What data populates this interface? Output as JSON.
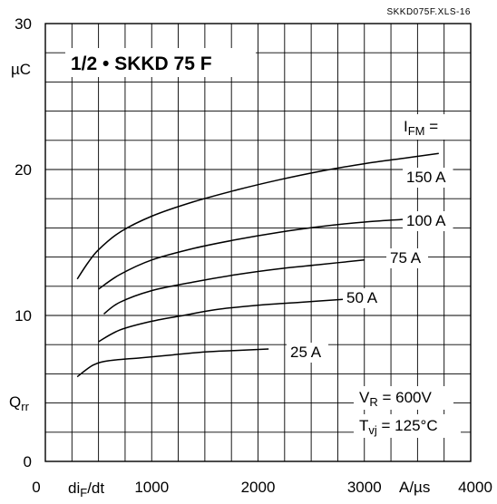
{
  "chart_data": {
    "type": "line",
    "title": "1/2 • SKKD 75 F",
    "reference": "SKKD075F.XLS-16",
    "x_axis": {
      "range": [
        0,
        4000
      ],
      "ticks": [
        0,
        1000,
        2000,
        3000,
        4000
      ],
      "tick_labels": [
        "0",
        "1000",
        "2000",
        "3000",
        "4000"
      ],
      "label": "di",
      "label_sub": "F",
      "label_suffix": "/dt",
      "unit": "A/µs"
    },
    "y_axis": {
      "range": [
        0,
        30
      ],
      "ticks": [
        0,
        10,
        20,
        30
      ],
      "tick_labels": [
        "0",
        "10",
        "20",
        "30"
      ],
      "label": "Q",
      "label_sub": "rr",
      "unit": "µC"
    },
    "grid": true,
    "legend_header": {
      "text": "I",
      "sub": "FM",
      "suffix": " ="
    },
    "series": [
      {
        "name": "150 A",
        "x": [
          300,
          400,
          500,
          700,
          1000,
          1400,
          1800,
          2200,
          2600,
          3000,
          3400,
          3700
        ],
        "y": [
          12.5,
          13.6,
          14.5,
          15.7,
          16.8,
          17.8,
          18.6,
          19.3,
          19.9,
          20.4,
          20.8,
          21.1
        ]
      },
      {
        "name": "100 A",
        "x": [
          500,
          700,
          1000,
          1400,
          1800,
          2200,
          2600,
          3000,
          3400,
          3500
        ],
        "y": [
          11.8,
          12.8,
          13.8,
          14.6,
          15.2,
          15.7,
          16.1,
          16.4,
          16.6,
          16.7
        ]
      },
      {
        "name": "75 A",
        "x": [
          550,
          700,
          1000,
          1400,
          1800,
          2200,
          2600,
          3000
        ],
        "y": [
          10.1,
          10.9,
          11.7,
          12.3,
          12.8,
          13.2,
          13.5,
          13.8
        ]
      },
      {
        "name": "50 A",
        "x": [
          500,
          700,
          1000,
          1300,
          1600,
          2000,
          2400,
          2800
        ],
        "y": [
          8.2,
          9.0,
          9.6,
          10.0,
          10.4,
          10.7,
          10.9,
          11.1
        ]
      },
      {
        "name": "25 A",
        "x": [
          300,
          450,
          600,
          900,
          1200,
          1500,
          1800,
          2100
        ],
        "y": [
          5.8,
          6.6,
          6.9,
          7.1,
          7.3,
          7.5,
          7.6,
          7.7
        ]
      }
    ],
    "annotations": [
      {
        "text": "V",
        "sub": "R",
        "suffix": " = 600V"
      },
      {
        "text": "T",
        "sub": "vj",
        "suffix": " = 125°C"
      }
    ]
  },
  "style": {
    "line_color": "#000000",
    "grid_color": "#000000",
    "background": "#ffffff"
  }
}
